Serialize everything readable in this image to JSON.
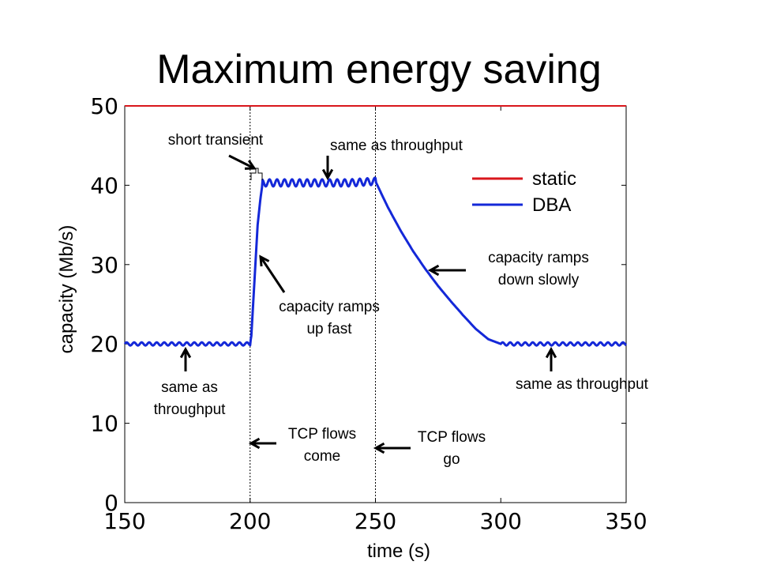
{
  "chart_data": {
    "type": "line",
    "title": "Maximum energy saving",
    "xlabel": "time (s)",
    "ylabel": "capacity (Mb/s)",
    "xlim": [
      150,
      350
    ],
    "ylim": [
      0,
      50
    ],
    "xticks": [
      "150",
      "200",
      "250",
      "300",
      "350"
    ],
    "yticks": [
      "0",
      "10",
      "20",
      "30",
      "40",
      "50"
    ],
    "legend_position": "top-right",
    "series": [
      {
        "name": "static",
        "color": "#d9161c",
        "x": [
          150,
          350
        ],
        "y": [
          50,
          50
        ]
      },
      {
        "name": "DBA",
        "color": "#1428d8",
        "x": [
          150,
          200,
          200.5,
          203,
          204,
          205,
          210,
          220,
          230,
          240,
          250,
          255,
          260,
          265,
          270,
          275,
          280,
          285,
          290,
          295,
          300,
          310,
          320,
          330,
          340,
          350
        ],
        "y": [
          20,
          20,
          21,
          35,
          38,
          40.3,
          40.3,
          40.3,
          40.3,
          40.3,
          40.5,
          37.2,
          34.3,
          31.7,
          29.4,
          27.3,
          25.4,
          23.6,
          21.9,
          20.6,
          20,
          20,
          20,
          20,
          20,
          20
        ],
        "ripple_ranges": [
          [
            150,
            200
          ],
          [
            205,
            250
          ],
          [
            300,
            350
          ]
        ]
      }
    ],
    "vlines": [
      200,
      250
    ],
    "annotations": [
      {
        "lines": [
          "short transient"
        ]
      },
      {
        "lines": [
          "same as throughput"
        ]
      },
      {
        "lines": [
          "capacity ramps",
          "up fast"
        ]
      },
      {
        "lines": [
          "capacity ramps",
          "down slowly"
        ]
      },
      {
        "lines": [
          "same as",
          "throughput"
        ]
      },
      {
        "lines": [
          "same as throughput"
        ]
      },
      {
        "lines": [
          "TCP flows",
          "come"
        ]
      },
      {
        "lines": [
          "TCP flows",
          "go"
        ]
      }
    ]
  }
}
